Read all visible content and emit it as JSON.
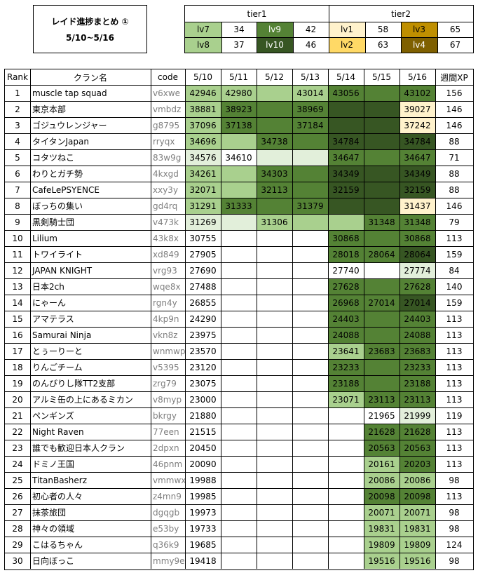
{
  "title": {
    "line1": "レイド進捗まとめ ①",
    "line2": "5/10~5/16"
  },
  "tiers": {
    "tier1_label": "tier1",
    "tier2_label": "tier2",
    "levels": [
      {
        "name": "lv7",
        "value": "34",
        "color": "#a9d08e",
        "text": "#000000"
      },
      {
        "name": "lv9",
        "value": "42",
        "color": "#548235",
        "text": "#ffffff"
      },
      {
        "name": "lv8",
        "value": "37",
        "color": "#a9d08e",
        "text": "#000000"
      },
      {
        "name": "lv10",
        "value": "46",
        "color": "#375623",
        "text": "#ffffff"
      },
      {
        "name": "lv1",
        "value": "58",
        "color": "#fff2cc",
        "text": "#000000"
      },
      {
        "name": "lv3",
        "value": "65",
        "color": "#bf8f00",
        "text": "#000000"
      },
      {
        "name": "lv2",
        "value": "63",
        "color": "#ffd966",
        "text": "#000000"
      },
      {
        "name": "lv4",
        "value": "67",
        "color": "#7f6000",
        "text": "#ffffff"
      }
    ]
  },
  "headers": [
    "Rank",
    "クラン名",
    "code",
    "5/10",
    "5/11",
    "5/12",
    "5/13",
    "5/14",
    "5/15",
    "5/16",
    "週間XP"
  ],
  "colors": {
    "a": "#e2efda",
    "b": "#a9d08e",
    "c": "#548235",
    "d": "#375623",
    "e": "#fff2cc"
  },
  "rows": [
    {
      "rank": "1",
      "name": "muscle tap squad",
      "code": "v6xwe",
      "xp": "156",
      "days": [
        [
          "42946",
          "b"
        ],
        [
          "42980",
          "b"
        ],
        [
          "",
          "b"
        ],
        [
          "43014",
          "b"
        ],
        [
          "43056",
          "c"
        ],
        [
          "",
          "c"
        ],
        [
          "43102",
          "c"
        ]
      ]
    },
    {
      "rank": "2",
      "name": "東京本部",
      "code": "vmbdz",
      "xp": "146",
      "days": [
        [
          "38881",
          "b"
        ],
        [
          "38923",
          "c"
        ],
        [
          "",
          "c"
        ],
        [
          "38969",
          "c"
        ],
        [
          "",
          "d"
        ],
        [
          "",
          "d"
        ],
        [
          "39027",
          "e"
        ]
      ]
    },
    {
      "rank": "3",
      "name": "ゴジュウレンジャー",
      "code": "g8795",
      "xp": "146",
      "days": [
        [
          "37096",
          "b"
        ],
        [
          "37138",
          "c"
        ],
        [
          "",
          "c"
        ],
        [
          "37184",
          "c"
        ],
        [
          "",
          "d"
        ],
        [
          "",
          "d"
        ],
        [
          "37242",
          "e"
        ]
      ]
    },
    {
      "rank": "4",
      "name": "タイタンJapan",
      "code": "rryqx",
      "xp": "88",
      "days": [
        [
          "34696",
          "b"
        ],
        [
          "",
          "b"
        ],
        [
          "34738",
          "c"
        ],
        [
          "",
          "c"
        ],
        [
          "34784",
          "d"
        ],
        [
          "",
          "d"
        ],
        [
          "34784",
          "d"
        ]
      ]
    },
    {
      "rank": "5",
      "name": "コタツねこ",
      "code": "83w9g",
      "xp": "71",
      "days": [
        [
          "34576",
          "a"
        ],
        [
          "34610",
          "-"
        ],
        [
          "",
          "a"
        ],
        [
          "",
          "a"
        ],
        [
          "34647",
          "c"
        ],
        [
          "",
          "c"
        ],
        [
          "34647",
          "c"
        ]
      ]
    },
    {
      "rank": "6",
      "name": "わりとガチ勢",
      "code": "4kxgd",
      "xp": "88",
      "days": [
        [
          "34261",
          "b"
        ],
        [
          "",
          "b"
        ],
        [
          "34303",
          "c"
        ],
        [
          "",
          "c"
        ],
        [
          "34349",
          "d"
        ],
        [
          "",
          "d"
        ],
        [
          "34349",
          "d"
        ]
      ]
    },
    {
      "rank": "7",
      "name": "CafeLePSYENCE",
      "code": "xxy3y",
      "xp": "88",
      "days": [
        [
          "32071",
          "b"
        ],
        [
          "",
          "b"
        ],
        [
          "32113",
          "c"
        ],
        [
          "",
          "c"
        ],
        [
          "32159",
          "d"
        ],
        [
          "",
          "d"
        ],
        [
          "32159",
          "d"
        ]
      ]
    },
    {
      "rank": "8",
      "name": "ぼっちの集い",
      "code": "gd4rq",
      "xp": "146",
      "days": [
        [
          "31291",
          "b"
        ],
        [
          "31333",
          "c"
        ],
        [
          "",
          "c"
        ],
        [
          "31379",
          "c"
        ],
        [
          "",
          "d"
        ],
        [
          "",
          "d"
        ],
        [
          "31437",
          "e"
        ]
      ]
    },
    {
      "rank": "9",
      "name": "黒剣騎士団",
      "code": "v473k",
      "xp": "79",
      "days": [
        [
          "31269",
          "a"
        ],
        [
          "",
          "a"
        ],
        [
          "31306",
          "b"
        ],
        [
          "",
          "b"
        ],
        [
          "",
          "b"
        ],
        [
          "31348",
          "c"
        ],
        [
          "31348",
          "c"
        ]
      ]
    },
    {
      "rank": "10",
      "name": "Lilium",
      "code": "43k8x",
      "xp": "113",
      "days": [
        [
          "30755",
          "-"
        ],
        [
          "",
          "-"
        ],
        [
          "",
          "-"
        ],
        [
          "",
          "-"
        ],
        [
          "30868",
          "c"
        ],
        [
          "",
          "c"
        ],
        [
          "30868",
          "c"
        ]
      ]
    },
    {
      "rank": "11",
      "name": "トワイライト",
      "code": "xd849",
      "xp": "159",
      "days": [
        [
          "27905",
          "-"
        ],
        [
          "",
          "-"
        ],
        [
          "",
          "-"
        ],
        [
          "",
          "-"
        ],
        [
          "28018",
          "c"
        ],
        [
          "28064",
          "c"
        ],
        [
          "28064",
          "d"
        ]
      ]
    },
    {
      "rank": "12",
      "name": "JAPAN KNIGHT",
      "code": "vrg93",
      "xp": "84",
      "days": [
        [
          "27690",
          "-"
        ],
        [
          "",
          "-"
        ],
        [
          "",
          "-"
        ],
        [
          "",
          "-"
        ],
        [
          "27740",
          "-"
        ],
        [
          "",
          "-"
        ],
        [
          "27774",
          "a"
        ]
      ]
    },
    {
      "rank": "13",
      "name": "日本2ch",
      "code": "wqe8x",
      "xp": "140",
      "days": [
        [
          "27488",
          "-"
        ],
        [
          "",
          "-"
        ],
        [
          "",
          "-"
        ],
        [
          "",
          "-"
        ],
        [
          "27628",
          "c"
        ],
        [
          "",
          "c"
        ],
        [
          "27628",
          "c"
        ]
      ]
    },
    {
      "rank": "14",
      "name": "にゃーん",
      "code": "rgn4y",
      "xp": "159",
      "days": [
        [
          "26855",
          "-"
        ],
        [
          "",
          "-"
        ],
        [
          "",
          "-"
        ],
        [
          "",
          "-"
        ],
        [
          "26968",
          "c"
        ],
        [
          "27014",
          "c"
        ],
        [
          "27014",
          "d"
        ]
      ]
    },
    {
      "rank": "15",
      "name": "アマテラス",
      "code": "4kp9n",
      "xp": "113",
      "days": [
        [
          "24290",
          "-"
        ],
        [
          "",
          "-"
        ],
        [
          "",
          "-"
        ],
        [
          "",
          "-"
        ],
        [
          "24403",
          "c"
        ],
        [
          "",
          "c"
        ],
        [
          "24403",
          "c"
        ]
      ]
    },
    {
      "rank": "16",
      "name": "Samurai Ninja",
      "code": "vkn8z",
      "xp": "113",
      "days": [
        [
          "23975",
          "-"
        ],
        [
          "",
          "-"
        ],
        [
          "",
          "-"
        ],
        [
          "",
          "-"
        ],
        [
          "24088",
          "c"
        ],
        [
          "",
          "c"
        ],
        [
          "24088",
          "c"
        ]
      ]
    },
    {
      "rank": "17",
      "name": "とぅーりーと",
      "code": "wnmwp",
      "xp": "113",
      "days": [
        [
          "23570",
          "-"
        ],
        [
          "",
          "-"
        ],
        [
          "",
          "-"
        ],
        [
          "",
          "-"
        ],
        [
          "23641",
          "b"
        ],
        [
          "23683",
          "c"
        ],
        [
          "23683",
          "c"
        ]
      ]
    },
    {
      "rank": "18",
      "name": "りんごチーム",
      "code": "v5395",
      "xp": "113",
      "days": [
        [
          "23120",
          "-"
        ],
        [
          "",
          "-"
        ],
        [
          "",
          "-"
        ],
        [
          "",
          "-"
        ],
        [
          "23233",
          "c"
        ],
        [
          "",
          "c"
        ],
        [
          "23233",
          "c"
        ]
      ]
    },
    {
      "rank": "19",
      "name": "のんびりし隊TT2支部",
      "code": "zrg79",
      "xp": "113",
      "days": [
        [
          "23075",
          "-"
        ],
        [
          "",
          "-"
        ],
        [
          "",
          "-"
        ],
        [
          "",
          "-"
        ],
        [
          "23188",
          "c"
        ],
        [
          "",
          "c"
        ],
        [
          "23188",
          "c"
        ]
      ]
    },
    {
      "rank": "20",
      "name": "アルミ缶の上にあるミカン",
      "code": "v8myp",
      "xp": "113",
      "days": [
        [
          "23000",
          "-"
        ],
        [
          "",
          "-"
        ],
        [
          "",
          "-"
        ],
        [
          "",
          "-"
        ],
        [
          "23071",
          "b"
        ],
        [
          "23113",
          "c"
        ],
        [
          "23113",
          "c"
        ]
      ]
    },
    {
      "rank": "21",
      "name": "ペンギンズ",
      "code": "bkrgy",
      "xp": "119",
      "days": [
        [
          "21880",
          "-"
        ],
        [
          "",
          "-"
        ],
        [
          "",
          "-"
        ],
        [
          "",
          "-"
        ],
        [
          "",
          "-"
        ],
        [
          "21965",
          "-"
        ],
        [
          "21999",
          "a"
        ]
      ]
    },
    {
      "rank": "22",
      "name": "Night Raven",
      "code": "77een",
      "xp": "113",
      "days": [
        [
          "21515",
          "-"
        ],
        [
          "",
          "-"
        ],
        [
          "",
          "-"
        ],
        [
          "",
          "-"
        ],
        [
          "",
          "-"
        ],
        [
          "21628",
          "c"
        ],
        [
          "21628",
          "c"
        ]
      ]
    },
    {
      "rank": "23",
      "name": "誰でも歓迎日本人クラン",
      "code": "2dpxn",
      "xp": "113",
      "days": [
        [
          "20450",
          "-"
        ],
        [
          "",
          "-"
        ],
        [
          "",
          "-"
        ],
        [
          "",
          "-"
        ],
        [
          "",
          "-"
        ],
        [
          "20563",
          "c"
        ],
        [
          "20563",
          "c"
        ]
      ]
    },
    {
      "rank": "24",
      "name": "ドミノ王国",
      "code": "46pnm",
      "xp": "113",
      "days": [
        [
          "20090",
          "-"
        ],
        [
          "",
          "-"
        ],
        [
          "",
          "-"
        ],
        [
          "",
          "-"
        ],
        [
          "",
          "-"
        ],
        [
          "20161",
          "b"
        ],
        [
          "20203",
          "c"
        ]
      ]
    },
    {
      "rank": "25",
      "name": "TitanBasherz",
      "code": "vmmwx",
      "xp": "98",
      "days": [
        [
          "19988",
          "-"
        ],
        [
          "",
          "-"
        ],
        [
          "",
          "-"
        ],
        [
          "",
          "-"
        ],
        [
          "",
          "-"
        ],
        [
          "20086",
          "b"
        ],
        [
          "20086",
          "b"
        ]
      ]
    },
    {
      "rank": "26",
      "name": "初心者の人々",
      "code": "z4mn9",
      "xp": "113",
      "days": [
        [
          "19985",
          "-"
        ],
        [
          "",
          "-"
        ],
        [
          "",
          "-"
        ],
        [
          "",
          "-"
        ],
        [
          "",
          "-"
        ],
        [
          "20098",
          "c"
        ],
        [
          "20098",
          "c"
        ]
      ]
    },
    {
      "rank": "27",
      "name": "抹茶旅団",
      "code": "dgqgb",
      "xp": "98",
      "days": [
        [
          "19973",
          "-"
        ],
        [
          "",
          "-"
        ],
        [
          "",
          "-"
        ],
        [
          "",
          "-"
        ],
        [
          "",
          "-"
        ],
        [
          "20071",
          "b"
        ],
        [
          "20071",
          "b"
        ]
      ]
    },
    {
      "rank": "28",
      "name": "神々の領域",
      "code": "e53by",
      "xp": "98",
      "days": [
        [
          "19733",
          "-"
        ],
        [
          "",
          "-"
        ],
        [
          "",
          "-"
        ],
        [
          "",
          "-"
        ],
        [
          "",
          "-"
        ],
        [
          "19831",
          "b"
        ],
        [
          "19831",
          "b"
        ]
      ]
    },
    {
      "rank": "29",
      "name": "こはるちゃん",
      "code": "q36k9",
      "xp": "124",
      "days": [
        [
          "19685",
          "-"
        ],
        [
          "",
          "-"
        ],
        [
          "",
          "-"
        ],
        [
          "",
          "-"
        ],
        [
          "",
          "-"
        ],
        [
          "19809",
          "b"
        ],
        [
          "19809",
          "b"
        ]
      ]
    },
    {
      "rank": "30",
      "name": "日向ぼっこ",
      "code": "mmy9e",
      "xp": "98",
      "days": [
        [
          "19418",
          "-"
        ],
        [
          "",
          "-"
        ],
        [
          "",
          "-"
        ],
        [
          "",
          "-"
        ],
        [
          "",
          "-"
        ],
        [
          "19516",
          "b"
        ],
        [
          "19516",
          "b"
        ]
      ]
    }
  ]
}
